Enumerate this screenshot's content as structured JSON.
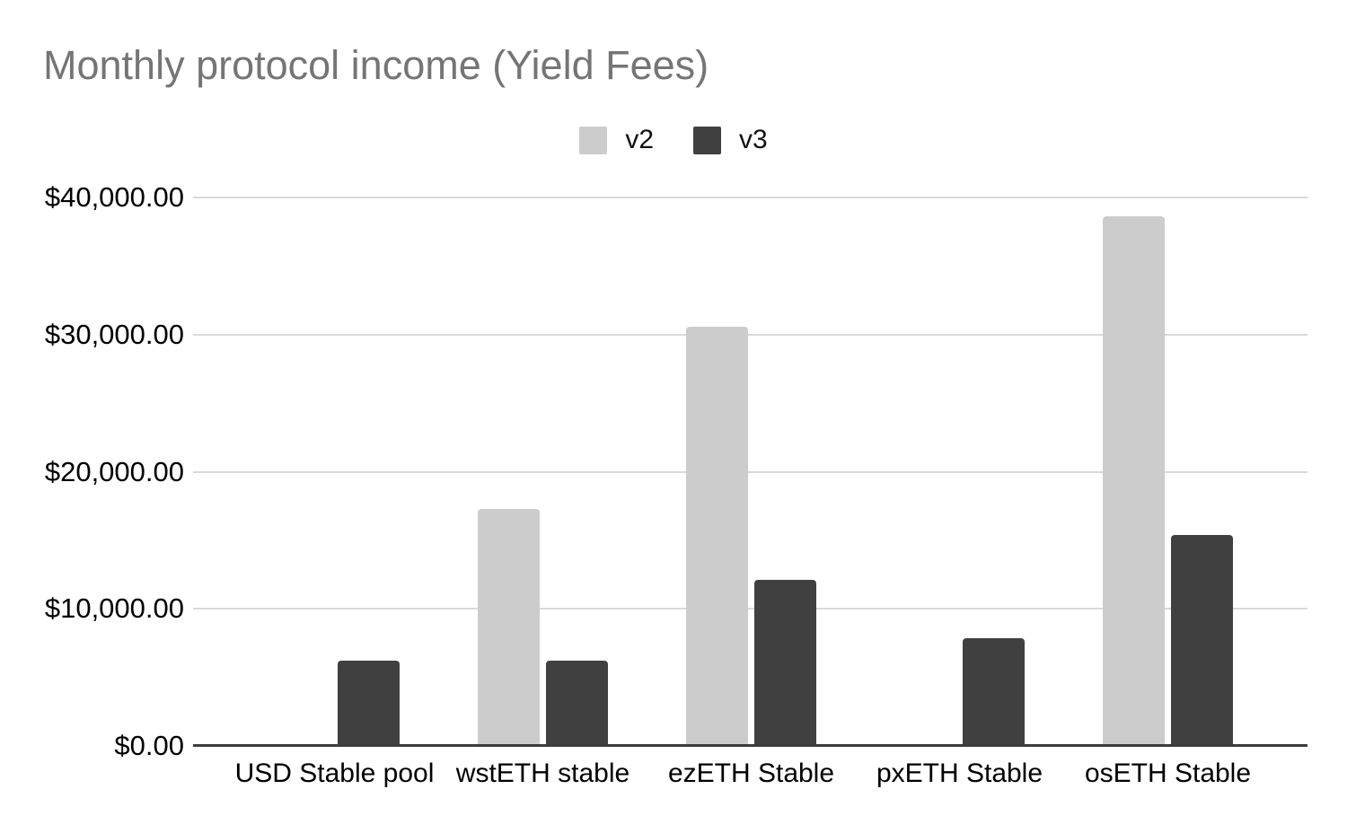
{
  "chart_data": {
    "type": "bar",
    "title": "Monthly protocol income (Yield Fees)",
    "categories": [
      "USD Stable pool",
      "wstETH stable",
      "ezETH Stable",
      "pxETH Stable",
      "osETH Stable"
    ],
    "series": [
      {
        "name": "v2",
        "color": "#cccccc",
        "values": [
          0,
          17300,
          30600,
          0,
          38600
        ]
      },
      {
        "name": "v3",
        "color": "#404040",
        "values": [
          6200,
          6200,
          12100,
          7850,
          15400
        ]
      }
    ],
    "xlabel": "",
    "ylabel": "",
    "ylim": [
      0,
      40000
    ],
    "y_ticks": [
      0,
      10000,
      20000,
      30000,
      40000
    ],
    "y_tick_labels": [
      "$0.00",
      "$10,000.00",
      "$20,000.00",
      "$30,000.00",
      "$40,000.00"
    ],
    "legend_position": "top-center",
    "grid": true
  },
  "colors": {
    "background": "#ffffff",
    "title_text": "#757575",
    "axis_text": "#000000",
    "gridline": "#d9d9d9",
    "baseline": "#3c3c3c"
  }
}
